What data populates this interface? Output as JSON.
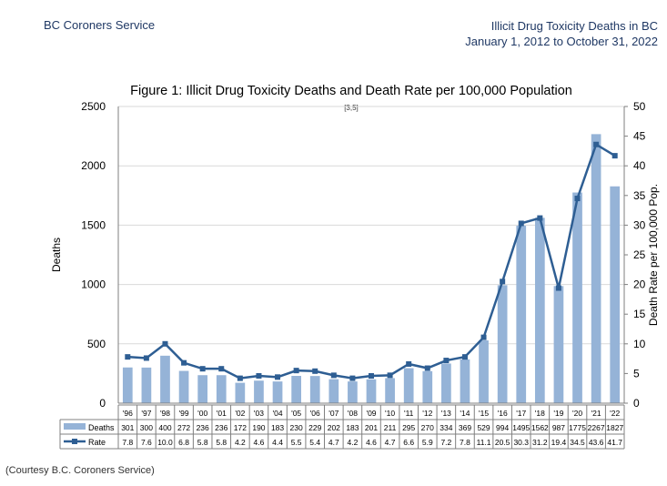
{
  "header": {
    "org": "BC Coroners Service",
    "title_line1": "Illicit Drug Toxicity Deaths in BC",
    "title_line2": "January 1, 2012 to October 31, 2022"
  },
  "caption": "(Courtesy B.C. Coroners Service)",
  "colors": {
    "bar": "#95b3d7",
    "line": "#2e5e93",
    "grid": "#d9d9d9"
  },
  "chart_data": {
    "type": "bar",
    "title": "Figure 1: Illicit Drug Toxicity Deaths and Death Rate per 100,000 Population",
    "annotation": "[3,5]",
    "ylabel": "Deaths",
    "y2label": "Death Rate per 100,000 Pop.",
    "ylim": [
      0,
      2500
    ],
    "y2lim": [
      0,
      50
    ],
    "yticks": [
      0,
      500,
      1000,
      1500,
      2000,
      2500
    ],
    "y2ticks": [
      0,
      5,
      10,
      15,
      20,
      25,
      30,
      35,
      40,
      45,
      50
    ],
    "categories": [
      "'96",
      "'97",
      "'98",
      "'99",
      "'00",
      "'01",
      "'02",
      "'03",
      "'04",
      "'05",
      "'06",
      "'07",
      "'08",
      "'09",
      "'10",
      "'11",
      "'12",
      "'13",
      "'14",
      "'15",
      "'16",
      "'17",
      "'18",
      "'19",
      "'20",
      "'21",
      "'22"
    ],
    "series": [
      {
        "name": "Deaths",
        "type": "bar",
        "axis": "left",
        "values": [
          301,
          300,
          400,
          272,
          236,
          236,
          172,
          190,
          183,
          230,
          229,
          202,
          183,
          201,
          211,
          295,
          270,
          334,
          369,
          529,
          994,
          1495,
          1562,
          987,
          1775,
          2267,
          1827
        ],
        "labels": [
          "301",
          "300",
          "400",
          "272",
          "236",
          "236",
          "172",
          "190",
          "183",
          "230",
          "229",
          "202",
          "183",
          "201",
          "211",
          "295",
          "270",
          "334",
          "369",
          "529",
          "994",
          "1495",
          "1562",
          "987",
          "1775",
          "2267",
          "1827"
        ]
      },
      {
        "name": "Rate",
        "type": "line",
        "axis": "right",
        "values": [
          7.8,
          7.6,
          10.0,
          6.8,
          5.8,
          5.8,
          4.2,
          4.6,
          4.4,
          5.5,
          5.4,
          4.7,
          4.2,
          4.6,
          4.7,
          6.6,
          5.9,
          7.2,
          7.8,
          11.1,
          20.5,
          30.3,
          31.2,
          19.4,
          34.5,
          43.6,
          41.7
        ],
        "labels": [
          "7.8",
          "7.6",
          "10.0",
          "6.8",
          "5.8",
          "5.8",
          "4.2",
          "4.6",
          "4.4",
          "5.5",
          "5.4",
          "4.7",
          "4.2",
          "4.6",
          "4.7",
          "6.6",
          "5.9",
          "7.2",
          "7.8",
          "11.1",
          "20.5",
          "30.3",
          "31.2",
          "19.4",
          "34.5",
          "43.6",
          "41.7"
        ]
      }
    ]
  }
}
